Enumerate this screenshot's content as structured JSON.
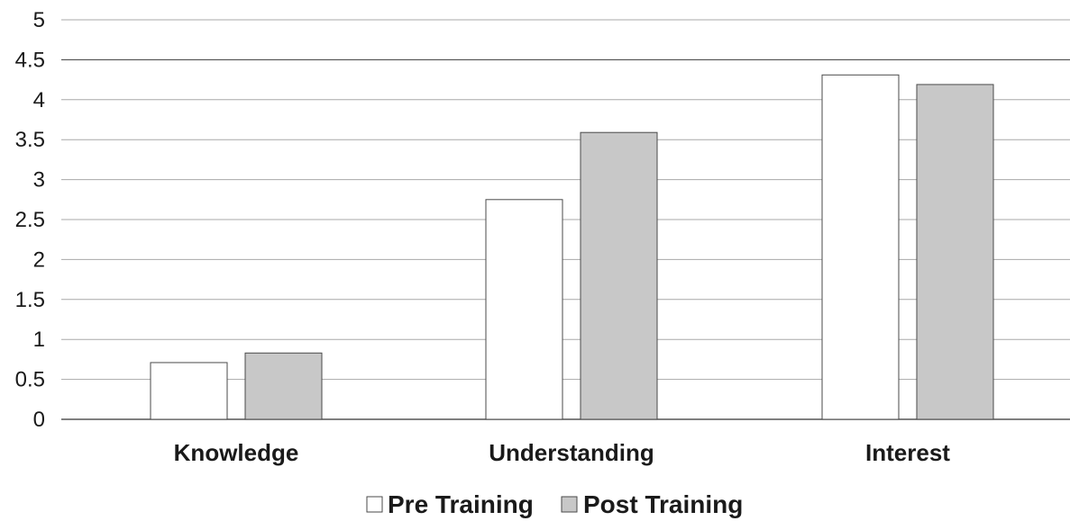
{
  "chart_data": {
    "type": "bar",
    "categories": [
      "Knowledge",
      "Understanding",
      "Interest"
    ],
    "series": [
      {
        "name": "Pre Training",
        "values": [
          0.71,
          2.75,
          4.31
        ],
        "color": "#ffffff"
      },
      {
        "name": "Post Training",
        "values": [
          0.83,
          3.59,
          4.19
        ],
        "color": "#c8c8c8"
      }
    ],
    "ylim": [
      0,
      5
    ],
    "yticks": [
      0,
      0.5,
      1,
      1.5,
      2,
      2.5,
      3,
      3.5,
      4,
      4.5,
      5
    ],
    "grid": true,
    "legend": "bottom"
  }
}
